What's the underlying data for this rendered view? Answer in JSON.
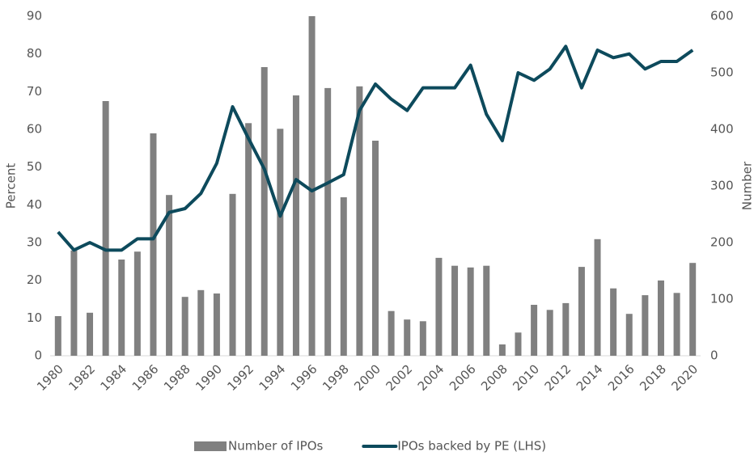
{
  "chart_data": {
    "type": "bar_line",
    "categories": [
      "1980",
      null,
      "1982",
      null,
      "1984",
      null,
      "1986",
      null,
      "1988",
      null,
      "1990",
      null,
      "1992",
      null,
      "1994",
      null,
      "1996",
      null,
      "1998",
      null,
      "2000",
      null,
      "2002",
      null,
      "2004",
      null,
      "2006",
      null,
      "2008",
      null,
      "2010",
      null,
      "2012",
      null,
      "2014",
      null,
      "2016",
      null,
      "2018",
      null,
      "2020"
    ],
    "series": [
      {
        "name": "Number of IPOs",
        "type": "bar",
        "axis": "y2",
        "color": "#808080",
        "values": [
          70,
          186,
          76,
          450,
          170,
          184,
          393,
          284,
          104,
          116,
          110,
          286,
          411,
          510,
          401,
          460,
          600,
          473,
          280,
          476,
          380,
          79,
          64,
          61,
          173,
          159,
          156,
          159,
          20,
          41,
          90,
          81,
          93,
          157,
          206,
          119,
          74,
          107,
          133,
          111,
          164
        ]
      },
      {
        "name": "IPOs backed by PE (LHS)",
        "type": "line",
        "axis": "y",
        "color": "#0d4a5c",
        "values": [
          32.8,
          28,
          30,
          28,
          28,
          31,
          31,
          38,
          39,
          43,
          51,
          66,
          57.6,
          49.5,
          37,
          46.7,
          43.7,
          45.8,
          48,
          65,
          72,
          68,
          65,
          71,
          71,
          71,
          77,
          64,
          57,
          75,
          73,
          76,
          82,
          71,
          81,
          79,
          80,
          76,
          78,
          78,
          81
        ]
      }
    ],
    "y_label": "Percent",
    "y2_label": "Number",
    "ylim": [
      0,
      90
    ],
    "yticks": [
      0,
      10,
      20,
      30,
      40,
      50,
      60,
      70,
      80,
      90
    ],
    "y2lim": [
      0,
      600
    ],
    "y2ticks": [
      0,
      100,
      200,
      300,
      400,
      500,
      600
    ],
    "grid": false,
    "legend": "bottom"
  }
}
